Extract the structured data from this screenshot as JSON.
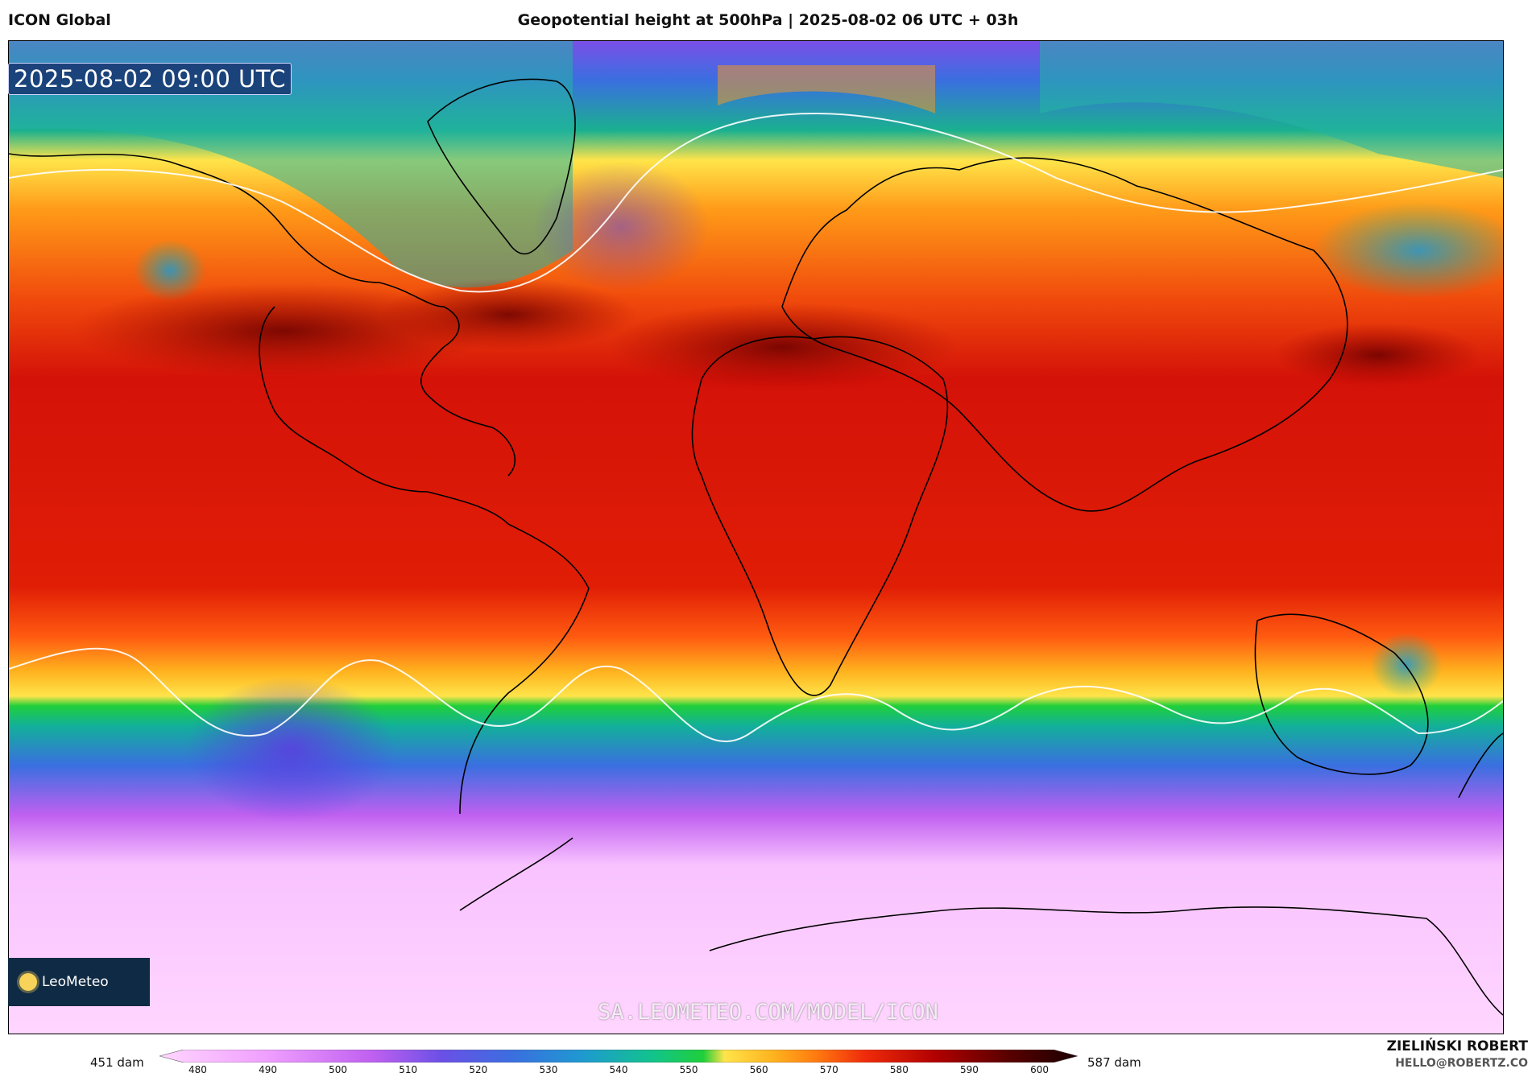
{
  "header": {
    "model_name": "ICON Global",
    "title": "Geopotential height at 500hPa | 2025-08-02 06 UTC + 03h"
  },
  "map": {
    "valid_time": "2025-08-02 09:00 UTC",
    "projection": "equirectangular world map",
    "parameter": "500 hPa geopotential height",
    "logo_brand": "LeoMeteo",
    "watermark": "SA.LEOMETEO.COM/MODEL/ICON"
  },
  "colorbar": {
    "min_label": "451 dam",
    "max_label": "587 dam",
    "ticks": [
      "480",
      "490",
      "500",
      "510",
      "520",
      "530",
      "540",
      "550",
      "560",
      "570",
      "580",
      "590",
      "600"
    ],
    "stops": [
      {
        "value": 475,
        "color": "#ffd6ff"
      },
      {
        "value": 490,
        "color": "#f0a0ff"
      },
      {
        "value": 505,
        "color": "#c060f0"
      },
      {
        "value": 515,
        "color": "#6a50e6"
      },
      {
        "value": 525,
        "color": "#3a6fe0"
      },
      {
        "value": 535,
        "color": "#1e9ad0"
      },
      {
        "value": 545,
        "color": "#12c48a"
      },
      {
        "value": 552,
        "color": "#1fcf3a"
      },
      {
        "value": 555,
        "color": "#ffe44a"
      },
      {
        "value": 562,
        "color": "#ffb21e"
      },
      {
        "value": 568,
        "color": "#ff7a10"
      },
      {
        "value": 575,
        "color": "#ef2a0a"
      },
      {
        "value": 585,
        "color": "#b00000"
      },
      {
        "value": 595,
        "color": "#5a0000"
      },
      {
        "value": 605,
        "color": "#1a0000"
      }
    ]
  },
  "footer": {
    "author": "ZIELIŃSKI ROBERT",
    "email": "HELLO@ROBERTZ.CO"
  }
}
